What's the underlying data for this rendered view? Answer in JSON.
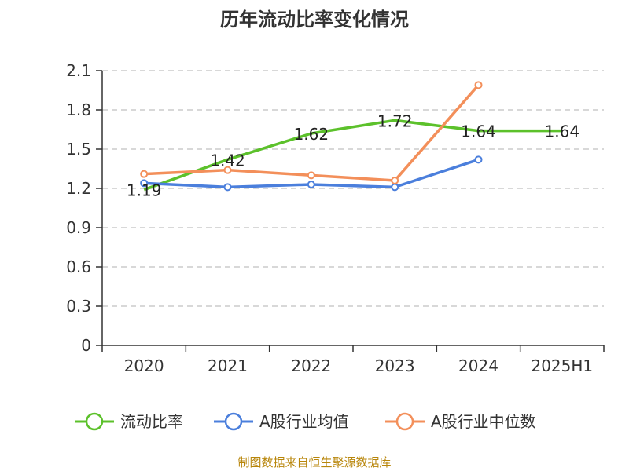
{
  "title": "历年流动比率变化情况",
  "source": "制图数据来自恒生聚源数据库",
  "colors": {
    "current_ratio": "#5cc12b",
    "industry_avg": "#4b7fdc",
    "industry_median": "#f38f5a",
    "axis": "#333333",
    "grid": "#cccccc"
  },
  "chart_data": {
    "type": "line",
    "title": "历年流动比率变化情况",
    "categories": [
      "2020",
      "2021",
      "2022",
      "2023",
      "2024",
      "2025H1"
    ],
    "ylim": [
      0,
      2.1
    ],
    "yticks": [
      "0",
      "0.3",
      "0.6",
      "0.9",
      "1.2",
      "1.5",
      "1.8",
      "2.1"
    ],
    "grid": true,
    "legend_position": "bottom",
    "series": [
      {
        "name": "流动比率",
        "color": "#5cc12b",
        "values": [
          1.19,
          1.42,
          1.62,
          1.72,
          1.64,
          1.64
        ],
        "labels": [
          "1.19",
          "1.42",
          "1.62",
          "1.72",
          "1.64",
          "1.64"
        ],
        "markers": false
      },
      {
        "name": "A股行业均值",
        "color": "#4b7fdc",
        "values": [
          1.24,
          1.21,
          1.23,
          1.21,
          1.42,
          null
        ],
        "markers": true
      },
      {
        "name": "A股行业中位数",
        "color": "#f38f5a",
        "values": [
          1.31,
          1.34,
          1.3,
          1.26,
          1.99,
          null
        ],
        "markers": true
      }
    ]
  }
}
